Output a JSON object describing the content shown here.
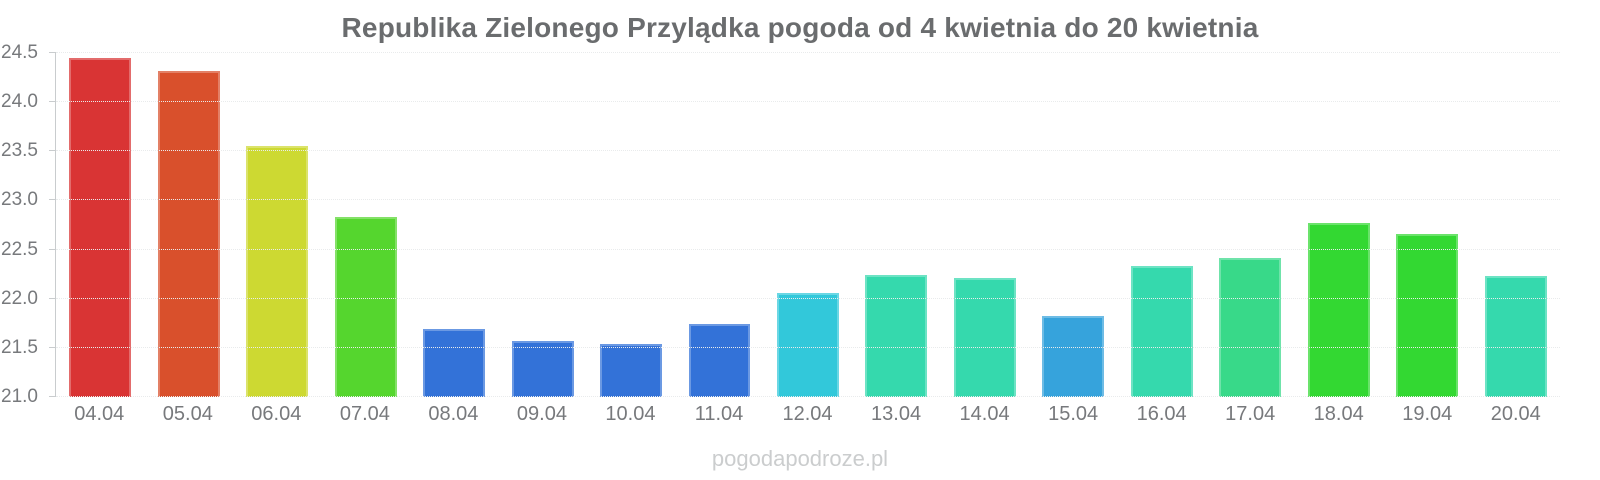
{
  "chart_data": {
    "type": "bar",
    "title": "Republika Zielonego Przylądka pogoda od 4 kwietnia do 20 kwietnia",
    "xlabel": "",
    "ylabel": "",
    "categories": [
      "04.04",
      "05.04",
      "06.04",
      "07.04",
      "08.04",
      "09.04",
      "10.04",
      "11.04",
      "12.04",
      "13.04",
      "14.04",
      "15.04",
      "16.04",
      "17.04",
      "18.04",
      "19.04",
      "20.04"
    ],
    "values": [
      24.45,
      24.32,
      23.55,
      22.83,
      21.69,
      21.57,
      21.54,
      21.74,
      22.06,
      22.24,
      22.21,
      21.82,
      22.33,
      22.41,
      22.77,
      22.66,
      22.23
    ],
    "bar_colors": [
      "#d93434",
      "#d9502c",
      "#cdd932",
      "#55d62e",
      "#3372d8",
      "#3372d8",
      "#3372d8",
      "#3372d8",
      "#32c8da",
      "#35d9ad",
      "#35d9ad",
      "#36a3dc",
      "#35d9ad",
      "#38d989",
      "#33d832",
      "#33d832",
      "#35d9ad"
    ],
    "ylim": [
      21.0,
      24.5
    ],
    "y_ticks": [
      21.0,
      21.5,
      22.0,
      22.5,
      23.0,
      23.5,
      24.0,
      24.5
    ],
    "grid": true,
    "legend": false,
    "colors": {
      "title_text": "#6a6c6e",
      "axis_label_text": "#77797c",
      "axis_line": "#c9ccce",
      "gridline": "#e9ebec"
    }
  },
  "watermark": {
    "text": "pogodapodroze.pl"
  }
}
